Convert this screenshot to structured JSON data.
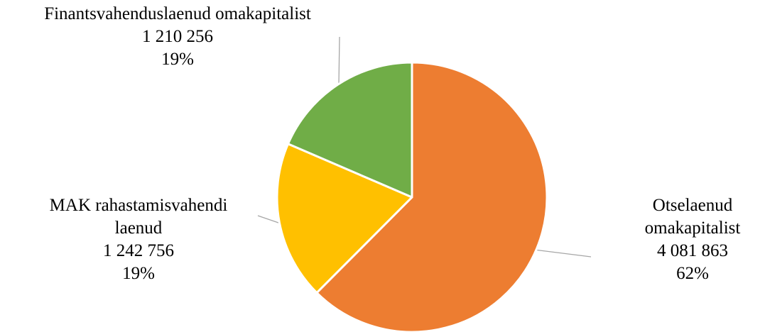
{
  "chart_data": {
    "type": "pie",
    "start_angle_deg": 0,
    "direction": "clockwise",
    "slices": [
      {
        "label_lines": [
          "Otselaenud",
          "omakapitalist"
        ],
        "value": 4081863,
        "value_text": "4 081 863",
        "percent_text": "62%",
        "color": "#ED7D31"
      },
      {
        "label_lines": [
          "MAK rahastamisvahendi",
          "laenud"
        ],
        "value": 1242756,
        "value_text": "1 242 756",
        "percent_text": "19%",
        "color": "#FFC000"
      },
      {
        "label_lines": [
          "Finantsvahenduslaenud omakapitalist"
        ],
        "value": 1210256,
        "value_text": "1 210 256",
        "percent_text": "19%",
        "color": "#70AD47"
      }
    ]
  }
}
